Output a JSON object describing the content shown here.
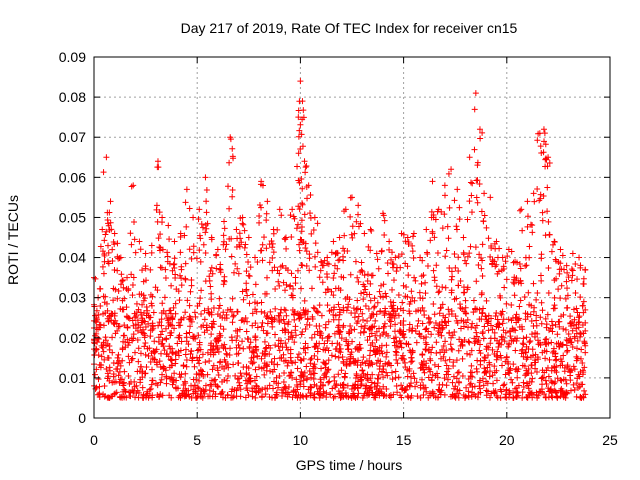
{
  "chart_data": {
    "type": "scatter",
    "title": "Day 217 of 2019, Rate Of TEC Index for receiver cn15",
    "xlabel": "GPS time / hours",
    "ylabel": "ROTI / TECUs",
    "xlim": [
      0,
      25
    ],
    "ylim": [
      0,
      0.09
    ],
    "x_ticks": [
      0,
      5,
      10,
      15,
      20,
      25
    ],
    "x_tick_labels": [
      "0",
      "5",
      "10",
      "15",
      "20",
      "25"
    ],
    "y_ticks": [
      0,
      0.01,
      0.02,
      0.03,
      0.04,
      0.05,
      0.06,
      0.07,
      0.08,
      0.09
    ],
    "y_tick_labels": [
      "0",
      "0.01",
      "0.02",
      "0.03",
      "0.04",
      "0.05",
      "0.06",
      "0.07",
      "0.08",
      "0.09"
    ],
    "grid": true,
    "marker": "+",
    "series": [
      {
        "name": "ROTI",
        "color": "#ff0000",
        "x": [
          0.0,
          0.2,
          0.4,
          0.6,
          0.8,
          1.0,
          1.3,
          1.6,
          1.9,
          2.2,
          2.5,
          2.8,
          3.1,
          3.3,
          3.6,
          3.9,
          4.2,
          4.5,
          4.8,
          5.1,
          5.4,
          5.7,
          6.0,
          6.3,
          6.6,
          6.9,
          7.2,
          7.5,
          7.8,
          8.1,
          8.4,
          8.7,
          9.0,
          9.3,
          9.6,
          9.9,
          10.0,
          10.1,
          10.2,
          10.4,
          10.7,
          11.0,
          11.3,
          11.6,
          11.9,
          12.2,
          12.5,
          12.8,
          13.1,
          13.4,
          13.7,
          14.0,
          14.3,
          14.6,
          14.9,
          15.2,
          15.5,
          15.8,
          16.1,
          16.4,
          16.7,
          17.0,
          17.3,
          17.6,
          17.9,
          18.2,
          18.5,
          18.7,
          18.9,
          19.2,
          19.5,
          19.8,
          20.1,
          20.4,
          20.7,
          21.0,
          21.3,
          21.6,
          21.8,
          22.0,
          22.3,
          22.6,
          22.9,
          23.2,
          23.5,
          23.8
        ],
        "y": [
          0.035,
          0.03,
          0.047,
          0.065,
          0.054,
          0.046,
          0.04,
          0.035,
          0.058,
          0.044,
          0.041,
          0.043,
          0.064,
          0.05,
          0.048,
          0.044,
          0.046,
          0.057,
          0.05,
          0.052,
          0.06,
          0.045,
          0.042,
          0.049,
          0.07,
          0.047,
          0.05,
          0.045,
          0.04,
          0.059,
          0.054,
          0.047,
          0.052,
          0.045,
          0.052,
          0.075,
          0.084,
          0.079,
          0.064,
          0.058,
          0.05,
          0.039,
          0.04,
          0.044,
          0.045,
          0.052,
          0.055,
          0.053,
          0.046,
          0.047,
          0.041,
          0.051,
          0.044,
          0.04,
          0.046,
          0.045,
          0.046,
          0.04,
          0.047,
          0.059,
          0.052,
          0.058,
          0.062,
          0.057,
          0.045,
          0.065,
          0.081,
          0.072,
          0.056,
          0.055,
          0.044,
          0.04,
          0.042,
          0.039,
          0.052,
          0.054,
          0.056,
          0.071,
          0.072,
          0.065,
          0.044,
          0.042,
          0.038,
          0.041,
          0.04,
          0.037
        ]
      }
    ],
    "baseline_band": [
      0.005,
      0.02
    ]
  }
}
